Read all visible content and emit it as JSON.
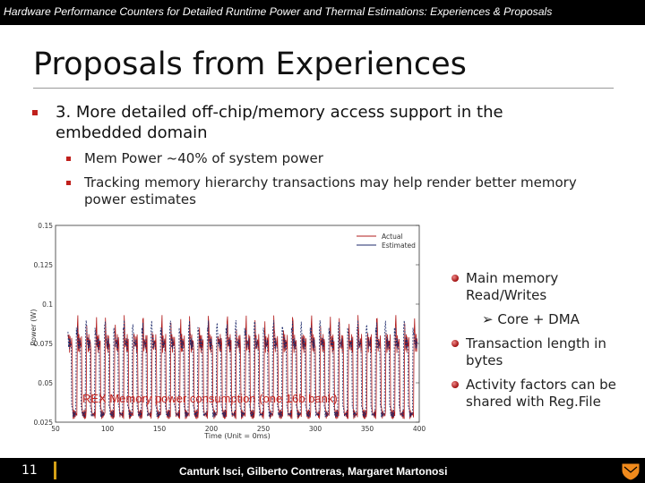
{
  "header": {
    "title": "Hardware Performance Counters for Detailed Runtime Power and Thermal Estimations: Experiences & Proposals"
  },
  "slide": {
    "title": "Proposals from Experiences",
    "bullet": "3. More detailed off-chip/memory access support in the embedded domain",
    "sub_bullets": [
      "Mem Power ~40% of system power",
      "Tracking memory hierarchy transactions may help render better memory power estimates"
    ],
    "right_bullets": [
      "Main memory Read/Writes",
      "Transaction length in bytes",
      "Activity factors can be shared with Reg.File"
    ],
    "right_sub": "Core + DMA"
  },
  "chart_data": {
    "type": "line",
    "ylabel": "Power (W)",
    "xlabel": "Time (Unit = 0ms)",
    "yticks": [
      "0.15",
      "0.125",
      "0.1",
      "0.075",
      "0.05",
      "0.025"
    ],
    "xticks": [
      "50",
      "100",
      "150",
      "200",
      "250",
      "300",
      "350",
      "400"
    ],
    "xlim": [
      50,
      400
    ],
    "ylim": [
      0.025,
      0.15
    ],
    "legend": [
      "Actual",
      "Estimated"
    ],
    "legend_position": "top-right",
    "caption": "REX Memory power consumption (one 16b bank)",
    "series_colors": [
      "#b11b1b",
      "#1c2a6b"
    ],
    "series_pattern": {
      "high": 0.085,
      "low": 0.03,
      "period": 9
    }
  },
  "footer": {
    "page_number": "11",
    "authors": "Canturk Isci, Gilberto Contreras, Margaret Martonosi"
  },
  "colors": {
    "accent": "#c0201c",
    "gold": "#d4a017"
  }
}
